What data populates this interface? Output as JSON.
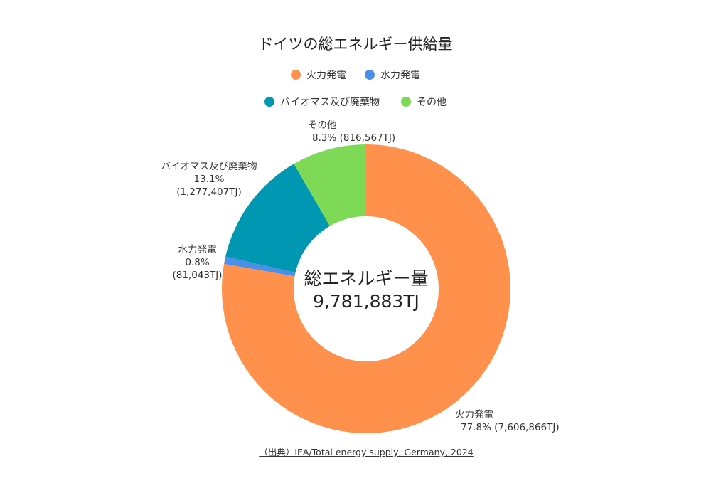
{
  "chart_data": {
    "type": "pie",
    "variant": "donut",
    "title": "ドイツの総エネルギー供給量",
    "categories": [
      "火力発電",
      "水力発電",
      "バイオマス及び廃棄物",
      "その他"
    ],
    "values": [
      7606866,
      81043,
      1277407,
      816567
    ],
    "percentages": [
      77.8,
      0.8,
      13.1,
      8.3
    ],
    "unit": "TJ",
    "colors": [
      "#FF914D",
      "#4A90E8",
      "#0097B2",
      "#7ED957"
    ],
    "center_label": "総エネルギー量",
    "center_value": "9,781,883TJ",
    "total": 9781883,
    "legend_position": "top",
    "start_angle": "12 o'clock, clockwise"
  },
  "title": "ドイツの総エネルギー供給量",
  "legend": [
    {
      "label": "火力発電",
      "color": "#FF914D"
    },
    {
      "label": "水力発電",
      "color": "#4A90E8"
    },
    {
      "label": "バイオマス及び廃棄物",
      "color": "#0097B2"
    },
    {
      "label": "その他",
      "color": "#7ED957"
    }
  ],
  "labels": {
    "thermal": {
      "name": "火力発電",
      "value": "77.8% (7,606,866TJ)"
    },
    "hydro": {
      "name": "水力発電",
      "pct": "0.8%",
      "amount": "(81,043TJ)"
    },
    "biomass": {
      "name": "バイオマス及び廃棄物",
      "pct": "13.1%",
      "amount": "(1,277,407TJ)"
    },
    "other": {
      "name": "その他",
      "value": "8.3% (816,567TJ)"
    }
  },
  "center": {
    "label": "総エネルギー量",
    "value": "9,781,883TJ"
  },
  "source": "（出典）IEA/Total energy supply, Germany, 2024"
}
